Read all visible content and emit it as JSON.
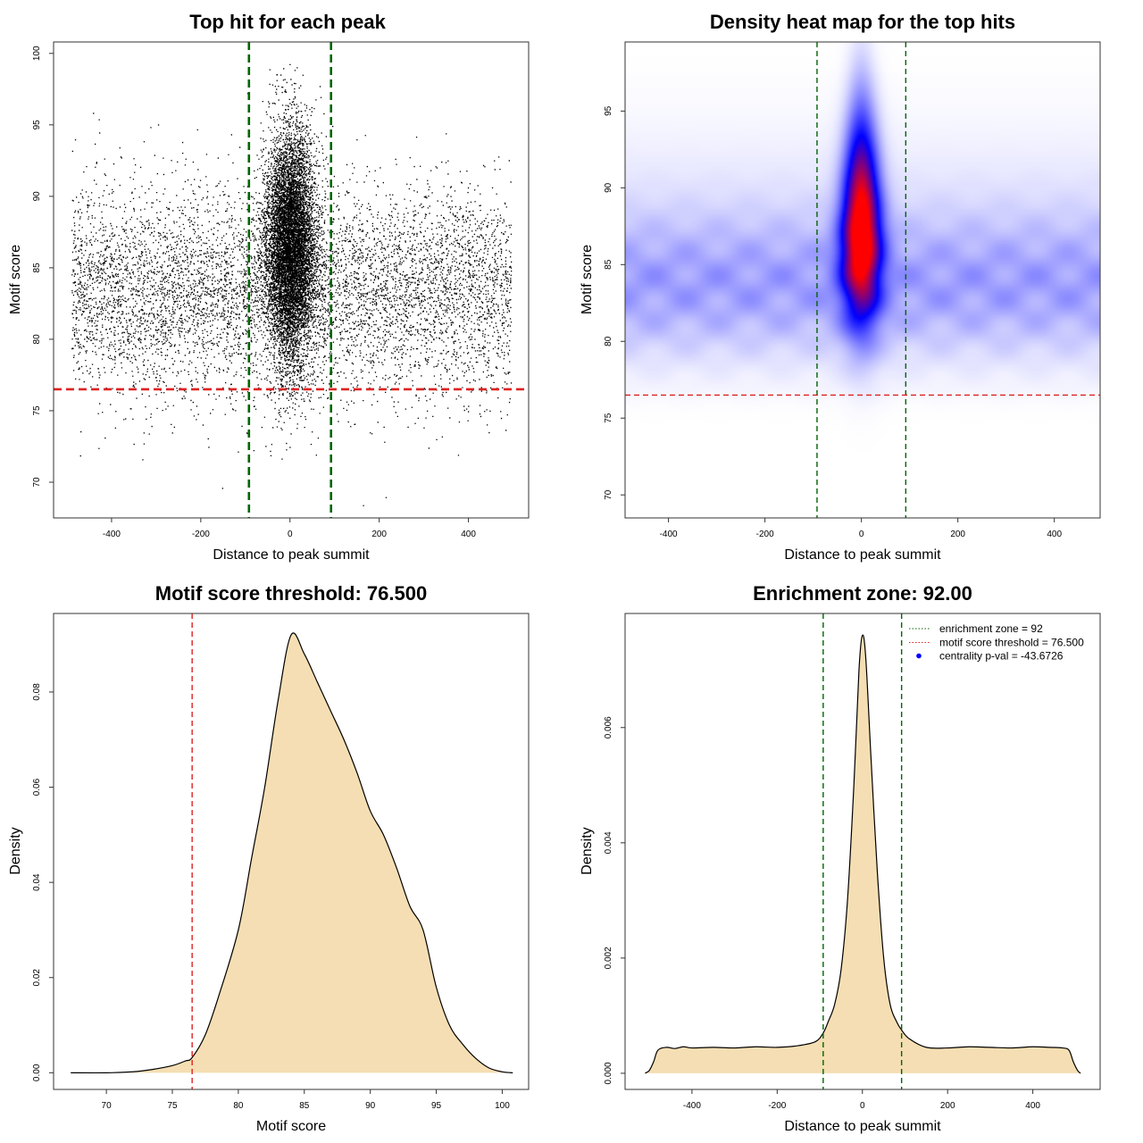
{
  "chart_data": [
    {
      "id": "p1",
      "type": "scatter",
      "title": "Top hit for each peak",
      "xlabel": "Distance to peak summit",
      "ylabel": "Motif score",
      "xlim": [
        -530,
        535
      ],
      "ylim": [
        67.5,
        100.8
      ],
      "xticks": [
        -400,
        -200,
        0,
        200,
        400
      ],
      "yticks": [
        70,
        75,
        80,
        85,
        90,
        95,
        100
      ],
      "point_color": "#000000",
      "background": {
        "x_range": [
          -490,
          495
        ],
        "score_mean": 83.5,
        "score_sd": 3.6,
        "n_points": 7000
      },
      "central": {
        "x_sd": 28,
        "score_mean": 86.5,
        "score_sd": 4.0,
        "n_points": 9000
      },
      "vlines": [
        {
          "x": -92,
          "color": "#006400",
          "style": "dashed"
        },
        {
          "x": 92,
          "color": "#006400",
          "style": "dashed"
        }
      ],
      "hline": {
        "y": 76.5,
        "color": "#dd2222",
        "style": "dashed"
      }
    },
    {
      "id": "p2",
      "type": "heatmap",
      "title": "Density heat map for the top hits",
      "xlabel": "Distance to peak summit",
      "ylabel": "Motif score",
      "xlim": [
        -490,
        495
      ],
      "ylim": [
        68.5,
        99.5
      ],
      "xticks": [
        -400,
        -200,
        0,
        200,
        400
      ],
      "yticks": [
        70,
        75,
        80,
        85,
        90,
        95
      ],
      "colors": [
        "#ffffff",
        "#0000ff",
        "#ff0000"
      ],
      "central_blob": {
        "x": 0,
        "y": 87,
        "x_sd": 28,
        "y_sd": 4.2
      },
      "background_band": {
        "y": 83.5,
        "y_sd": 3.2,
        "intensity": 0.22
      },
      "vlines": [
        {
          "x": -92,
          "color": "#006400",
          "style": "dashed"
        },
        {
          "x": 92,
          "color": "#006400",
          "style": "dashed"
        }
      ],
      "hline": {
        "y": 76.5,
        "color": "#dd2222",
        "style": "dashed"
      }
    },
    {
      "id": "p3",
      "type": "area",
      "title": "Motif score threshold: 76.500",
      "xlabel": "Motif score",
      "ylabel": "Density",
      "xlim": [
        66.0,
        102.0
      ],
      "ylim": [
        -0.0035,
        0.0965
      ],
      "xticks": [
        70,
        75,
        80,
        85,
        90,
        95,
        100
      ],
      "yticks": [
        0.0,
        0.02,
        0.04,
        0.06,
        0.08
      ],
      "ytick_labels": [
        "0.00",
        "0.02",
        "0.04",
        "0.06",
        "0.08"
      ],
      "fill_color": "#f5deb3",
      "line_color": "#000000",
      "curve": {
        "x": [
          67.3,
          70,
          72,
          73.5,
          75,
          76,
          76.5,
          77.5,
          78.5,
          80,
          81,
          82,
          83,
          84,
          85,
          86,
          87,
          88,
          89,
          90,
          91,
          92,
          93,
          94,
          95,
          96,
          97,
          98,
          99,
          100,
          100.8
        ],
        "y": [
          0.0,
          0.0,
          0.0002,
          0.0007,
          0.0015,
          0.0025,
          0.0032,
          0.008,
          0.016,
          0.03,
          0.045,
          0.06,
          0.078,
          0.092,
          0.088,
          0.082,
          0.076,
          0.07,
          0.063,
          0.055,
          0.05,
          0.043,
          0.035,
          0.03,
          0.018,
          0.01,
          0.006,
          0.003,
          0.001,
          0.0002,
          0.0
        ]
      },
      "vline": {
        "x": 76.5,
        "color": "#dd2222",
        "style": "dashed"
      }
    },
    {
      "id": "p4",
      "type": "area",
      "title": "Enrichment zone: 92.00",
      "xlabel": "Distance to peak summit",
      "ylabel": "Density",
      "xlim": [
        -557,
        558
      ],
      "ylim": [
        -0.00028,
        0.00798
      ],
      "xticks": [
        -400,
        -200,
        0,
        200,
        400
      ],
      "yticks": [
        0.0,
        0.002,
        0.004,
        0.006
      ],
      "ytick_labels": [
        "0.000",
        "0.002",
        "0.004",
        "0.006"
      ],
      "fill_color": "#f5deb3",
      "line_color": "#000000",
      "curve": {
        "x": [
          -510,
          -500,
          -490,
          -480,
          -460,
          -440,
          -420,
          -400,
          -350,
          -300,
          -250,
          -200,
          -150,
          -110,
          -92,
          -80,
          -65,
          -50,
          -35,
          -20,
          -8,
          0,
          8,
          20,
          35,
          50,
          65,
          80,
          92,
          110,
          150,
          200,
          250,
          300,
          350,
          400,
          440,
          470,
          485,
          495,
          505,
          512
        ],
        "y": [
          0.0,
          5e-05,
          0.0002,
          0.0004,
          0.00045,
          0.00043,
          0.00046,
          0.00044,
          0.00045,
          0.00044,
          0.00046,
          0.00045,
          0.00048,
          0.00055,
          0.0007,
          0.0009,
          0.0012,
          0.0018,
          0.003,
          0.005,
          0.007,
          0.0076,
          0.0072,
          0.0055,
          0.0035,
          0.002,
          0.0012,
          0.0009,
          0.00075,
          0.0006,
          0.00045,
          0.00044,
          0.00046,
          0.00045,
          0.00044,
          0.00046,
          0.00045,
          0.00044,
          0.0004,
          0.0002,
          5e-05,
          0.0
        ]
      },
      "vlines": [
        {
          "x": -92,
          "color": "#006400",
          "style": "dashed"
        },
        {
          "x": 92,
          "color": "#006400",
          "style": "dashed"
        }
      ],
      "legend": {
        "position": "top-right",
        "entries": [
          {
            "label": "enrichment zone = 92",
            "color": "#006400",
            "kind": "dotted-line"
          },
          {
            "label": "motif score threshold = 76.500",
            "color": "#dd2222",
            "kind": "dotted-line"
          },
          {
            "label": "centrality p-val = -43.6726",
            "color": "#0000ff",
            "kind": "point"
          }
        ]
      }
    }
  ]
}
